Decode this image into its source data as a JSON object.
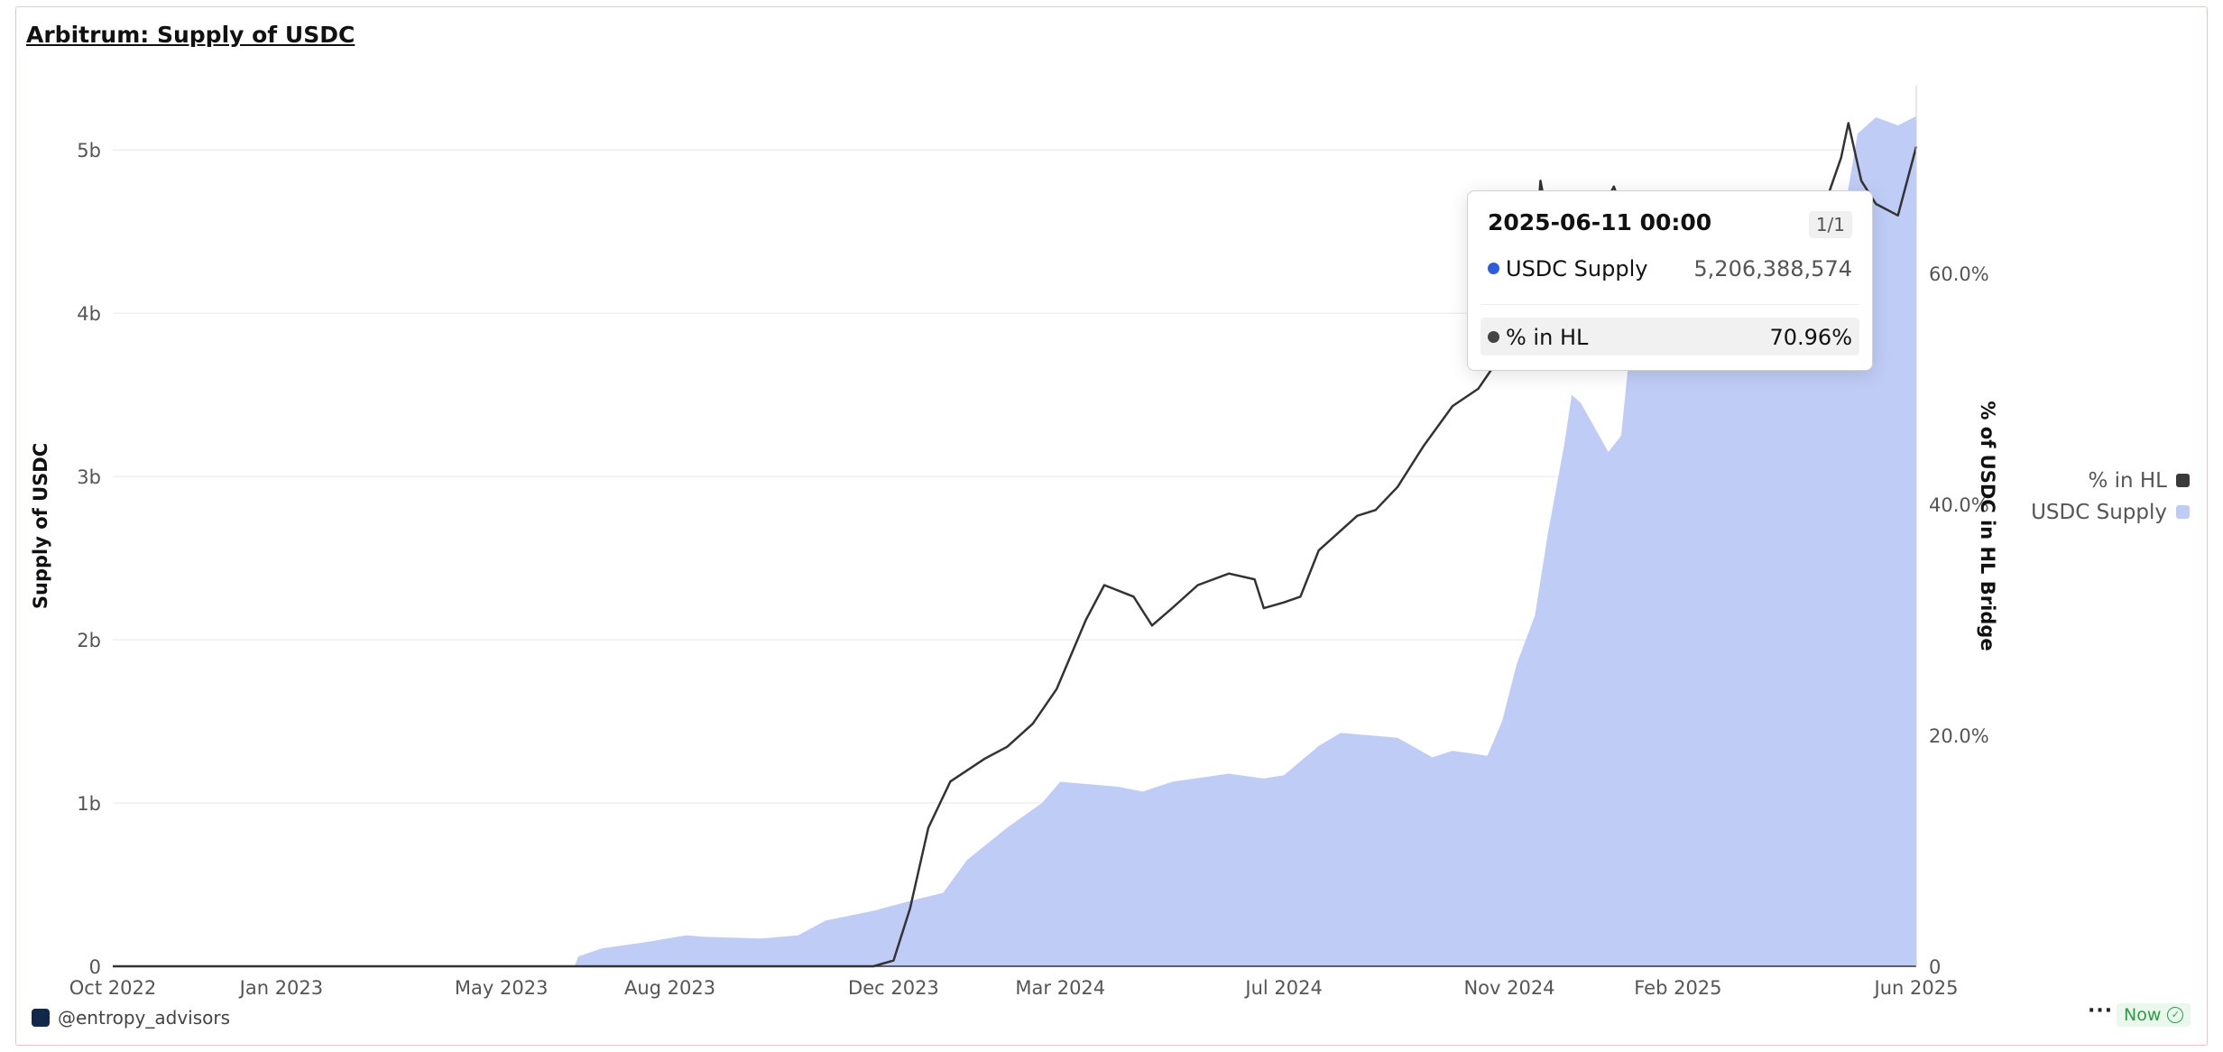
{
  "title": "Arbitrum: Supply of USDC",
  "chart_data": {
    "type": "area",
    "x_ticks": [
      "Oct 2022",
      "Jan 2023",
      "May 2023",
      "Aug 2023",
      "Dec 2023",
      "Mar 2024",
      "Jul 2024",
      "Nov 2024",
      "Feb 2025",
      "Jun 2025"
    ],
    "left_axis": {
      "label": "Supply of USDC",
      "ticks": [
        "0",
        "1b",
        "2b",
        "3b",
        "4b",
        "5b"
      ],
      "ylim": [
        0,
        5200000000
      ]
    },
    "right_axis": {
      "label": "% of USDC in HL Bridge",
      "ticks": [
        "0",
        "20.0%",
        "40.0%",
        "60.0%"
      ],
      "ylim": [
        0,
        73.5
      ]
    },
    "grid": "horizontal",
    "legend_position": "right",
    "series": [
      {
        "name": "USDC Supply",
        "type": "area",
        "axis": "left",
        "color": "#bfccf6",
        "points": [
          [
            "2022-10-01",
            0
          ],
          [
            "2023-06-10",
            0
          ],
          [
            "2023-06-12",
            60000000
          ],
          [
            "2023-06-25",
            110000000
          ],
          [
            "2023-07-20",
            150000000
          ],
          [
            "2023-08-10",
            190000000
          ],
          [
            "2023-08-20",
            180000000
          ],
          [
            "2023-09-20",
            170000000
          ],
          [
            "2023-10-10",
            190000000
          ],
          [
            "2023-10-25",
            280000000
          ],
          [
            "2023-11-20",
            340000000
          ],
          [
            "2023-12-10",
            400000000
          ],
          [
            "2023-12-28",
            450000000
          ],
          [
            "2024-01-10",
            650000000
          ],
          [
            "2024-02-01",
            850000000
          ],
          [
            "2024-02-20",
            1000000000
          ],
          [
            "2024-03-01",
            1130000000
          ],
          [
            "2024-04-01",
            1100000000
          ],
          [
            "2024-04-15",
            1070000000
          ],
          [
            "2024-05-01",
            1130000000
          ],
          [
            "2024-06-01",
            1180000000
          ],
          [
            "2024-06-20",
            1150000000
          ],
          [
            "2024-07-01",
            1170000000
          ],
          [
            "2024-07-20",
            1350000000
          ],
          [
            "2024-08-01",
            1430000000
          ],
          [
            "2024-09-01",
            1400000000
          ],
          [
            "2024-09-20",
            1280000000
          ],
          [
            "2024-10-01",
            1320000000
          ],
          [
            "2024-10-20",
            1290000000
          ],
          [
            "2024-10-28",
            1500000000
          ],
          [
            "2024-11-05",
            1850000000
          ],
          [
            "2024-11-15",
            2150000000
          ],
          [
            "2024-11-22",
            2650000000
          ],
          [
            "2024-12-01",
            3200000000
          ],
          [
            "2024-12-05",
            3500000000
          ],
          [
            "2024-12-10",
            3450000000
          ],
          [
            "2024-12-25",
            3150000000
          ],
          [
            "2025-01-01",
            3250000000
          ],
          [
            "2025-01-05",
            3700000000
          ],
          [
            "2025-01-20",
            3900000000
          ],
          [
            "2025-02-01",
            4100000000
          ],
          [
            "2025-03-01",
            4300000000
          ],
          [
            "2025-04-01",
            4350000000
          ],
          [
            "2025-05-01",
            4500000000
          ],
          [
            "2025-05-10",
            5100000000
          ],
          [
            "2025-05-20",
            5200000000
          ],
          [
            "2025-06-01",
            5150000000
          ],
          [
            "2025-06-11",
            5206388574
          ]
        ]
      },
      {
        "name": "% in HL",
        "type": "line",
        "axis": "right",
        "color": "#333333",
        "points": [
          [
            "2022-10-01",
            0
          ],
          [
            "2023-11-20",
            0
          ],
          [
            "2023-12-01",
            0.5
          ],
          [
            "2023-12-10",
            5
          ],
          [
            "2023-12-20",
            12
          ],
          [
            "2024-01-01",
            16
          ],
          [
            "2024-01-20",
            18
          ],
          [
            "2024-02-01",
            19
          ],
          [
            "2024-02-15",
            21
          ],
          [
            "2024-02-28",
            24
          ],
          [
            "2024-03-15",
            30
          ],
          [
            "2024-03-25",
            33
          ],
          [
            "2024-04-10",
            32
          ],
          [
            "2024-04-20",
            29.5
          ],
          [
            "2024-05-01",
            31
          ],
          [
            "2024-05-15",
            33
          ],
          [
            "2024-06-01",
            34
          ],
          [
            "2024-06-15",
            33.5
          ],
          [
            "2024-06-20",
            31
          ],
          [
            "2024-07-01",
            31.5
          ],
          [
            "2024-07-10",
            32
          ],
          [
            "2024-07-20",
            36
          ],
          [
            "2024-08-10",
            39
          ],
          [
            "2024-08-20",
            39.5
          ],
          [
            "2024-09-01",
            41.5
          ],
          [
            "2024-09-15",
            45
          ],
          [
            "2024-10-01",
            48.5
          ],
          [
            "2024-10-15",
            50
          ],
          [
            "2024-10-28",
            53
          ],
          [
            "2024-11-05",
            58
          ],
          [
            "2024-11-15",
            62
          ],
          [
            "2024-11-18",
            68
          ],
          [
            "2024-11-25",
            62
          ],
          [
            "2024-12-10",
            63.5
          ],
          [
            "2024-12-20",
            65
          ],
          [
            "2024-12-28",
            67.5
          ],
          [
            "2025-01-05",
            64
          ],
          [
            "2025-01-15",
            65
          ],
          [
            "2025-02-01",
            63.5
          ],
          [
            "2025-03-01",
            62
          ],
          [
            "2025-04-01",
            63
          ],
          [
            "2025-04-20",
            65
          ],
          [
            "2025-05-01",
            70
          ],
          [
            "2025-05-05",
            73
          ],
          [
            "2025-05-12",
            68
          ],
          [
            "2025-05-20",
            66
          ],
          [
            "2025-06-01",
            65
          ],
          [
            "2025-06-11",
            70.96
          ]
        ]
      }
    ]
  },
  "tooltip": {
    "date": "2025-06-11 00:00",
    "page": "1/1",
    "rows": [
      {
        "label": "USDC Supply",
        "value": "5,206,388,574",
        "color": "#2f5be0"
      },
      {
        "label": "% in HL",
        "value": "70.96%",
        "color": "#444444"
      }
    ]
  },
  "legend": [
    {
      "label": "% in HL",
      "color": "#3a3a3a"
    },
    {
      "label": "USDC Supply",
      "color": "#bfccf6"
    }
  ],
  "footer": {
    "author": "@entropy_advisors",
    "more": "···",
    "status": "Now"
  }
}
